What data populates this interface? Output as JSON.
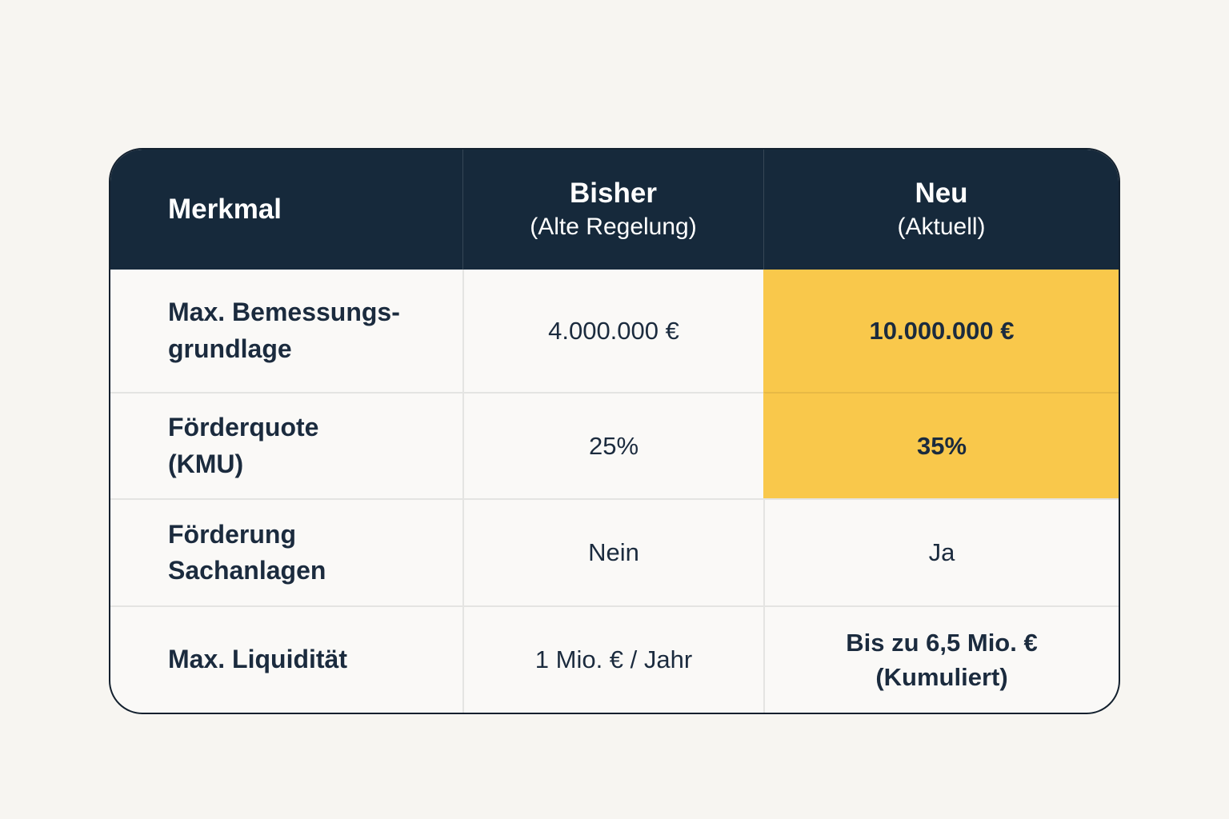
{
  "colors": {
    "page_bg": "#f7f5f1",
    "header_bg": "#16293b",
    "header_text": "#ffffff",
    "body_bg": "#faf9f7",
    "text": "#1b2b3e",
    "highlight": "#f9c84b",
    "divider": "#e4e4e2",
    "table_border": "#13202e"
  },
  "header": {
    "feature": "Merkmal",
    "old": {
      "label": "Bisher",
      "sublabel": "(Alte Regelung)"
    },
    "new": {
      "label": "Neu",
      "sublabel": "(Aktuell)"
    }
  },
  "rows": [
    {
      "feature": "Max. Bemessungs-\ngrundlage",
      "old": "4.000.000 €",
      "new": "10.000.000 €",
      "highlight": true
    },
    {
      "feature": "Förderquote\n(KMU)",
      "old": "25%",
      "new": "35%",
      "highlight": true
    },
    {
      "feature": "Förderung\nSachanlagen",
      "old": "Nein",
      "new": "Ja",
      "highlight": false
    },
    {
      "feature": "Max. Liquidität",
      "old": "1 Mio. € / Jahr",
      "new": "Bis zu 6,5 Mio. €\n(Kumuliert)",
      "highlight": false
    }
  ],
  "chart_data": {
    "type": "table",
    "title": "",
    "columns": [
      "Merkmal",
      "Bisher (Alte Regelung)",
      "Neu (Aktuell)"
    ],
    "rows": [
      [
        "Max. Bemessungsgrundlage",
        "4.000.000 €",
        "10.000.000 €"
      ],
      [
        "Förderquote (KMU)",
        "25%",
        "35%"
      ],
      [
        "Förderung Sachanlagen",
        "Nein",
        "Ja"
      ],
      [
        "Max. Liquidität",
        "1 Mio. € / Jahr",
        "Bis zu 6,5 Mio. € (Kumuliert)"
      ]
    ],
    "highlighted_cells": [
      {
        "row": 0,
        "column": "Neu (Aktuell)",
        "color": "#f9c84b"
      },
      {
        "row": 1,
        "column": "Neu (Aktuell)",
        "color": "#f9c84b"
      }
    ],
    "layout": "comparison table, header row dark navy, first column left-aligned bold labels, value columns centered"
  }
}
